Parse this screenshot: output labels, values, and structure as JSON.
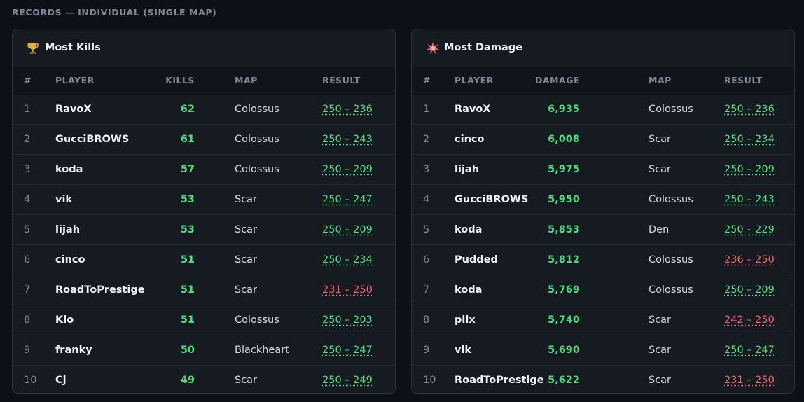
{
  "section_title": "RECORDS — INDIVIDUAL (SINGLE MAP)",
  "panels": [
    {
      "title": "Most Kills",
      "columns": [
        "#",
        "PLAYER",
        "KILLS",
        "MAP",
        "RESULT"
      ],
      "rows": [
        [
          1,
          "RavoX",
          62,
          "Colossus",
          "250 – 236"
        ],
        [
          2,
          "GucciBROWS",
          61,
          "Colossus",
          "250 – 243"
        ],
        [
          3,
          "koda",
          57,
          "Colossus",
          "250 – 209"
        ],
        [
          4,
          "vik",
          53,
          "Scar",
          "250 – 247"
        ],
        [
          5,
          "lijah",
          53,
          "Scar",
          "250 – 209"
        ],
        [
          6,
          "cinco",
          51,
          "Scar",
          "250 – 234"
        ],
        [
          7,
          "RoadToPrestige",
          51,
          "Scar",
          "231 – 250"
        ],
        [
          8,
          "Kio",
          51,
          "Colossus",
          "250 – 203"
        ],
        [
          9,
          "franky",
          50,
          "Blackheart",
          "250 – 247"
        ],
        [
          10,
          "Cj",
          49,
          "Scar",
          "250 – 249"
        ]
      ]
    },
    {
      "title": "Most Damage",
      "columns": [
        "#",
        "PLAYER",
        "DAMAGE",
        "MAP",
        "RESULT"
      ],
      "rows": [
        [
          1,
          "RavoX",
          "6,935",
          "Colossus",
          "250 – 236"
        ],
        [
          2,
          "cinco",
          "6,008",
          "Scar",
          "250 – 234"
        ],
        [
          3,
          "lijah",
          "5,975",
          "Scar",
          "250 – 209"
        ],
        [
          4,
          "GucciBROWS",
          "5,950",
          "Colossus",
          "250 – 243"
        ],
        [
          5,
          "koda",
          "5,853",
          "Den",
          "250 – 229"
        ],
        [
          6,
          "Pudded",
          "5,812",
          "Colossus",
          "236 – 250"
        ],
        [
          7,
          "koda",
          "5,769",
          "Colossus",
          "250 – 209"
        ],
        [
          8,
          "plix",
          "5,740",
          "Scar",
          "242 – 250"
        ],
        [
          9,
          "vik",
          "5,690",
          "Scar",
          "250 – 247"
        ],
        [
          10,
          "RoadToPrestige",
          "5,622",
          "Scar",
          "231 – 250"
        ]
      ]
    }
  ]
}
